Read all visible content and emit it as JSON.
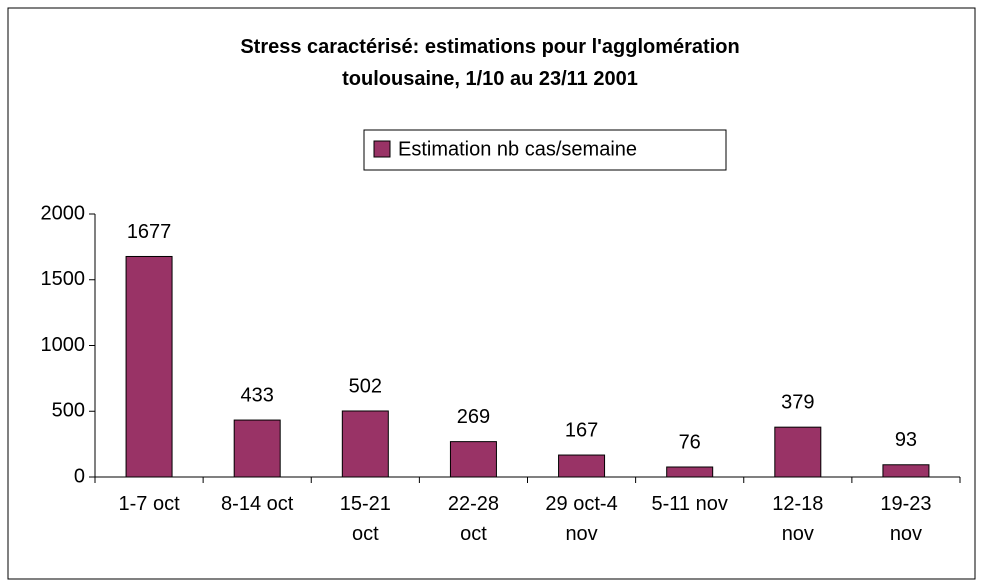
{
  "chart_data": {
    "type": "bar",
    "title": "Stress caractérisé: estimations pour l'agglomération toulousaine, 1/10 au 23/11 2001",
    "categories": [
      "1-7 oct",
      "8-14 oct",
      "15-21 oct",
      "22-28 oct",
      "29 oct-4 nov",
      "5-11 nov",
      "12-18 nov",
      "19-23 nov"
    ],
    "series": [
      {
        "name": "Estimation nb cas/semaine",
        "color": "#993366",
        "values": [
          1677,
          433,
          502,
          269,
          167,
          76,
          379,
          93
        ]
      }
    ],
    "ylim": [
      0,
      2000
    ],
    "yticks": [
      0,
      500,
      1000,
      1500,
      2000
    ],
    "grid": false,
    "legend": "top"
  }
}
